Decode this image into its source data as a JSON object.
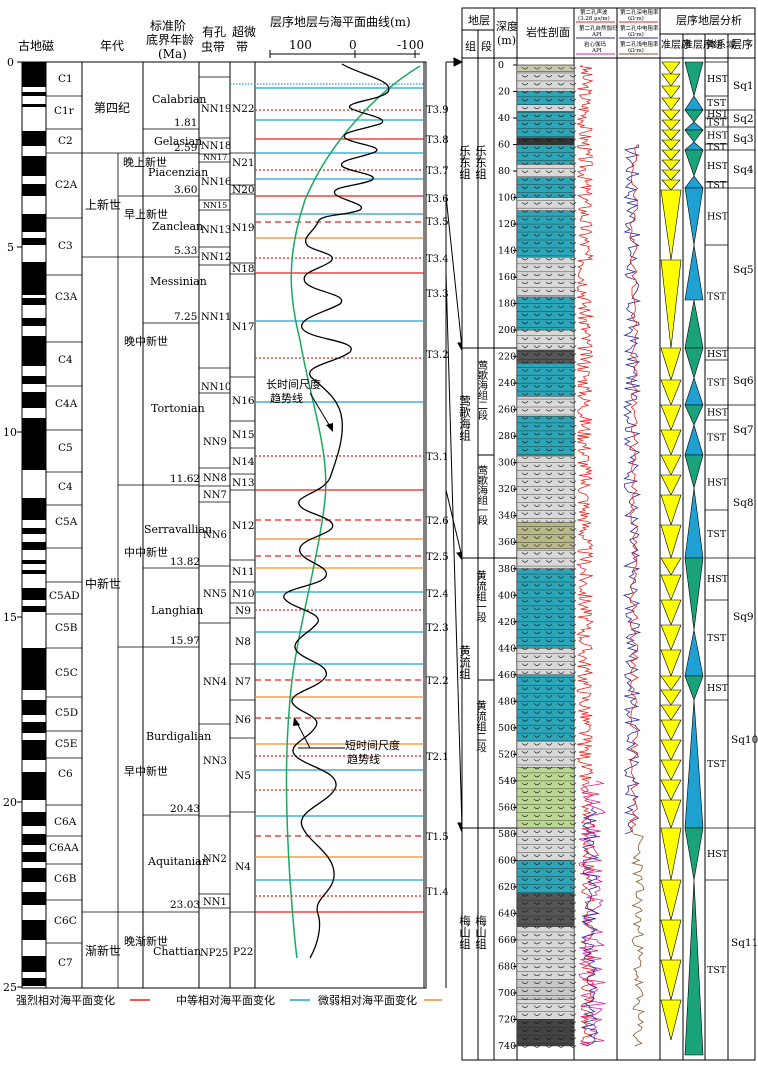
{
  "left": {
    "headers": {
      "paleomag": "古地磁",
      "era": "年代",
      "stage": "标准阶",
      "stage2": "底界年龄",
      "stage3": "(Ma)",
      "foram": "有孔",
      "foram2": "虫带",
      "nanno": "超微",
      "nanno2": "带",
      "curve": "层序地层与海平面曲线(m)"
    },
    "age_ticks": [
      "0",
      "5",
      "10",
      "15",
      "20",
      "25"
    ],
    "curve_ticks": [
      "100",
      "0",
      "-100"
    ],
    "chrons": [
      "C1",
      "C1r",
      "C2",
      "C2A",
      "C3",
      "C3A",
      "C4",
      "C4A",
      "C5",
      "C4",
      "C5A",
      "C5AD",
      "C5B",
      "C5C",
      "C5D",
      "C5E",
      "C6",
      "C6A",
      "C6AA",
      "C6B",
      "C6C",
      "C7"
    ],
    "epochs": {
      "quaternary": "第四纪",
      "pliocene": "上新世",
      "miocene": "中新世",
      "oligocene": "渐新世"
    },
    "sub_epochs": {
      "late_pliocene": "晚上新世",
      "early_pliocene": "早上新世",
      "late_miocene": "晚中新世",
      "middle_miocene": "中中新世",
      "early_miocene": "早中新世",
      "late_oligocene": "晚渐新世"
    },
    "stages": [
      "Calabrian",
      "Gelasian",
      "Piacenzian",
      "Zanclean",
      "Messinian",
      "Tortonian",
      "Serravallian",
      "Langhian",
      "Burdigalian",
      "Aquitanian",
      "Chattian"
    ],
    "stage_ages": [
      "1.81",
      "2.59",
      "3.60",
      "5.33",
      "7.25",
      "11.62",
      "13.82",
      "15.97",
      "20.43",
      "23.03"
    ],
    "nn_zones": [
      "NN19",
      "NN18",
      "NN17",
      "NN16",
      "NN15",
      "NN13",
      "NN12",
      "NN11",
      "NN10",
      "NN9",
      "NN8",
      "NN7",
      "NN6",
      "NN5",
      "NN4",
      "NN3",
      "NN2",
      "NN1",
      "NP25"
    ],
    "n_zones": [
      "N22",
      "N21",
      "N20",
      "N19",
      "N18",
      "N17",
      "N16",
      "N15",
      "N14",
      "N13",
      "N12",
      "N11",
      "N10",
      "N9",
      "N8",
      "N7",
      "N6",
      "N5",
      "N4",
      "P22"
    ],
    "t_boundaries": [
      "T3.9",
      "T3.8",
      "T3.7",
      "T3.6",
      "T3.5",
      "T3.4",
      "T3.3",
      "T3.2",
      "T3.1",
      "T2.6",
      "T2.5",
      "T2.4",
      "T2.3",
      "T2.2",
      "T2.1",
      "T1.5",
      "T1.4"
    ],
    "annotations": {
      "long_trend": "长时间尺度",
      "long_trend2": "趋势线",
      "short_trend": "短时间尺度",
      "short_trend2": "趋势线"
    },
    "legend": {
      "strong": "强烈相对海平面变化",
      "medium": "中等相对海平面变化",
      "weak": "微弱相对海平面变化"
    },
    "colors": {
      "strong": "#e8231e",
      "medium": "#1ea0d2",
      "weak": "#f08c28",
      "long_trend": "#1aa860"
    }
  },
  "right": {
    "headers": {
      "strata": "地层",
      "formation": "组",
      "member": "段",
      "depth": "深度",
      "depth_unit": "(m)",
      "lithology": "岩性剖面",
      "seq_analysis": "层序地层分析",
      "seq": "层序",
      "q1": "准层序",
      "q2": "准层序组",
      "q3": "体系域",
      "log1": "第二孔声波",
      "log1u": "(3.28 μs/m)",
      "log2": "第二孔自然伽玛",
      "log2u": "API",
      "log3": "岩心伽玛",
      "log3u": "API",
      "log4": "第二孔深电阻率",
      "log4u": "(Ω·m)",
      "log5": "第二孔中电阻率",
      "log5u": "(Ω·m)",
      "log6": "第二孔浅电阻率",
      "log6u": "(Ω·m)"
    },
    "depth_ticks": [
      "0",
      "20",
      "40",
      "60",
      "80",
      "100",
      "120",
      "140",
      "160",
      "180",
      "200",
      "220",
      "240",
      "260",
      "280",
      "300",
      "320",
      "340",
      "360",
      "380",
      "400",
      "420",
      "440",
      "460",
      "480",
      "500",
      "520",
      "540",
      "560",
      "580",
      "600",
      "620",
      "640",
      "660",
      "680",
      "700",
      "720",
      "740"
    ],
    "formations": {
      "ledong_fm": "乐东组",
      "ledong_mem": "乐东组",
      "yinggehai_fm": "莺歌海组",
      "yinggehai_2": "莺歌海组二段",
      "yinggehai_1": "莺歌海组一段",
      "huangliu_fm": "黄流组",
      "huangliu_1": "黄流组一段",
      "huangliu_2": "黄流组二段",
      "meishan_fm": "梅山组",
      "meishan_mem": "梅山组"
    },
    "systems_tracts": [
      "HST",
      "TST",
      "HST",
      "TST",
      "HST",
      "TST",
      "HST",
      "TST",
      "HST",
      "TST",
      "HST",
      "TST",
      "HST",
      "TST",
      "HST",
      "TST",
      "HST",
      "TST",
      "HST",
      "TST",
      "HST",
      "TST"
    ],
    "sequences": [
      "Sq1",
      "Sq2",
      "Sq3",
      "Sq4",
      "Sq5",
      "Sq6",
      "Sq7",
      "Sq8",
      "Sq9",
      "Sq10",
      "Sq11"
    ]
  }
}
